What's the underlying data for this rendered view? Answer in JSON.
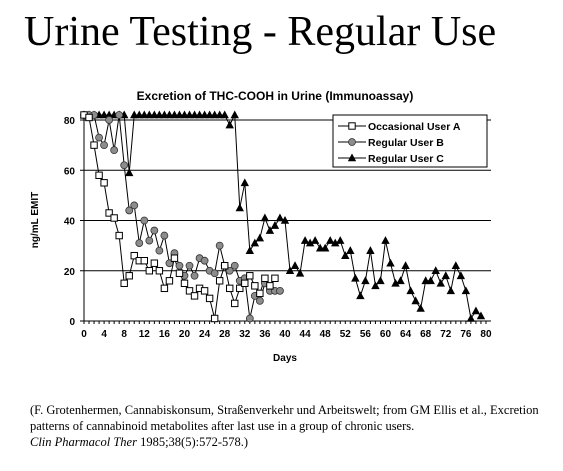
{
  "slide": {
    "title": "Urine Testing - Regular Use"
  },
  "citation": {
    "text": "(F. Grotenhermen, Cannabiskonsum, Straßenverkehr und Arbeitswelt; from GM Ellis  et al.,  Excretion patterns of cannabinoid metabolites after last use in a group of chronic users.",
    "journal": "Clin Pharmacol Ther",
    "ref": " 1985;38(5):572-578.)"
  },
  "chart_data": {
    "type": "line",
    "title": "Excretion of THC-COOH in Urine (Immunoassay)",
    "xlabel": "Days",
    "ylabel": "ng/mL EMIT",
    "xlim": [
      0,
      81
    ],
    "ylim": [
      0,
      80
    ],
    "xticks": [
      0,
      4,
      8,
      12,
      16,
      20,
      24,
      28,
      32,
      36,
      40,
      44,
      48,
      52,
      56,
      60,
      64,
      68,
      72,
      76,
      80
    ],
    "xtick_labels": [
      "0",
      "4",
      "8",
      "12",
      "16",
      "20",
      "24",
      "28",
      "32",
      "36",
      "40",
      "44",
      "48",
      "52",
      "56",
      "60",
      "64",
      "68",
      "72",
      "76",
      "80"
    ],
    "yticks": [
      0,
      20,
      40,
      60,
      80
    ],
    "ytick_labels": [
      "0",
      "20",
      "40",
      "60",
      "80"
    ],
    "grid": "horizontal",
    "legend_position": "top-right",
    "series": [
      {
        "name": "Occasional User A",
        "marker": "open-square",
        "color": "#000000",
        "x": [
          0,
          1,
          2,
          3,
          4,
          5,
          6,
          7,
          8,
          9,
          10,
          11,
          12,
          13,
          14,
          15,
          16,
          17,
          18,
          19,
          20,
          21,
          22,
          23,
          24,
          25,
          26,
          27,
          28,
          29,
          30,
          31,
          32,
          33,
          34,
          35,
          36,
          37,
          38
        ],
        "y": [
          82,
          81,
          70,
          58,
          55,
          43,
          41,
          34,
          15,
          18,
          26,
          24,
          24,
          20,
          23,
          20,
          13,
          16,
          25,
          19,
          15,
          12,
          10,
          13,
          12,
          9,
          1,
          16,
          22,
          13,
          7,
          13,
          15,
          18,
          14,
          11,
          17,
          14,
          17
        ]
      },
      {
        "name": "Regular User B",
        "marker": "filled-circle",
        "color": "#8c8c8c",
        "x": [
          0,
          1,
          2,
          3,
          4,
          5,
          6,
          7,
          8,
          9,
          10,
          11,
          12,
          13,
          14,
          15,
          16,
          17,
          18,
          19,
          20,
          21,
          22,
          23,
          24,
          25,
          26,
          27,
          28,
          29,
          30,
          31,
          32,
          33,
          34,
          35,
          36,
          37,
          38,
          39
        ],
        "y": [
          82,
          82,
          82,
          73,
          70,
          80,
          68,
          82,
          62,
          44,
          46,
          31,
          40,
          32,
          36,
          28,
          34,
          23,
          27,
          22,
          18,
          22,
          18,
          25,
          24,
          20,
          19,
          30,
          22,
          20,
          22,
          16,
          17,
          1,
          10,
          8,
          15,
          12,
          12,
          12
        ]
      },
      {
        "name": "Regular User C",
        "marker": "filled-triangle",
        "color": "#000000",
        "x": [
          0,
          1,
          2,
          3,
          4,
          5,
          6,
          7,
          8,
          9,
          10,
          11,
          12,
          13,
          14,
          15,
          16,
          17,
          18,
          19,
          20,
          21,
          22,
          23,
          24,
          25,
          26,
          27,
          28,
          29,
          30,
          31,
          32,
          33,
          34,
          35,
          36,
          37,
          38,
          39,
          40,
          41,
          42,
          43,
          44,
          45,
          46,
          47,
          48,
          49,
          50,
          51,
          52,
          53,
          54,
          55,
          56,
          57,
          58,
          59,
          60,
          61,
          62,
          63,
          64,
          65,
          66,
          67,
          68,
          69,
          70,
          71,
          72,
          73,
          74,
          75,
          76,
          77,
          78,
          79
        ],
        "y": [
          82,
          82,
          82,
          82,
          82,
          82,
          82,
          82,
          82,
          59,
          82,
          82,
          82,
          82,
          82,
          82,
          82,
          82,
          82,
          82,
          82,
          82,
          82,
          82,
          82,
          82,
          82,
          82,
          82,
          78,
          82,
          45,
          55,
          28,
          31,
          33,
          41,
          36,
          38,
          41,
          40,
          20,
          22,
          19,
          32,
          31,
          32,
          29,
          29,
          32,
          31,
          32,
          26,
          28,
          17,
          10,
          16,
          28,
          14,
          16,
          32,
          23,
          15,
          16,
          22,
          12,
          8,
          5,
          16,
          16,
          20,
          15,
          18,
          12,
          22,
          18,
          12,
          1,
          4,
          2
        ]
      }
    ]
  }
}
